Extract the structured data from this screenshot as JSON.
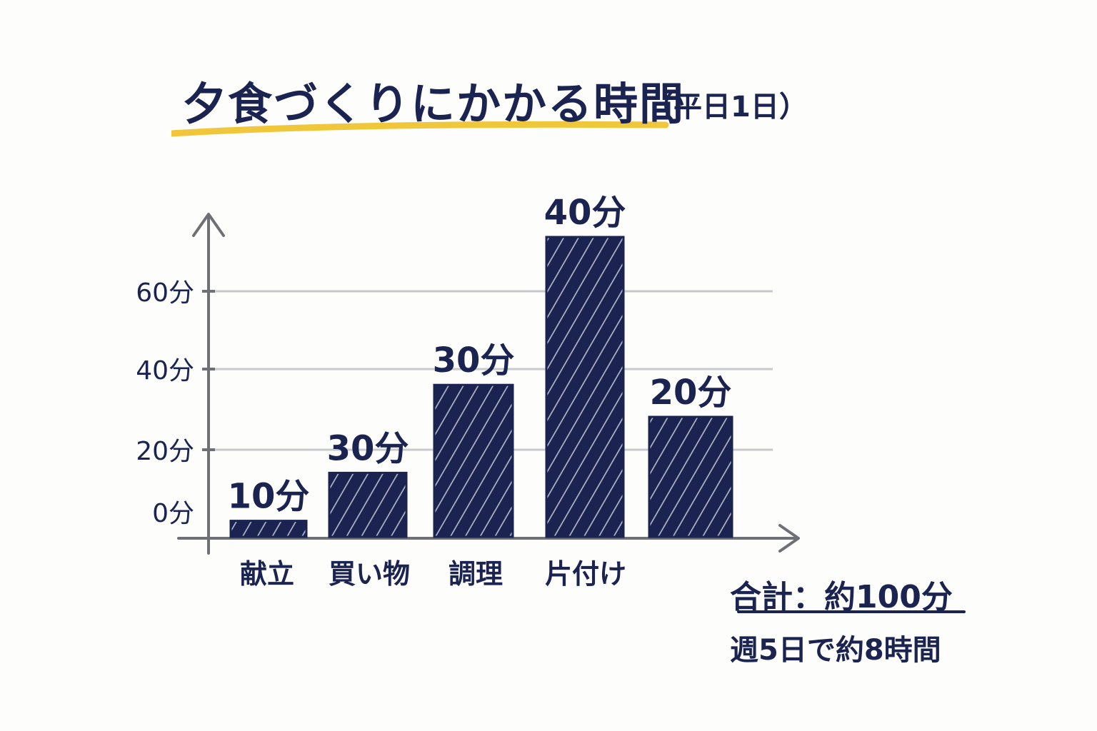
{
  "colors": {
    "bar": "#1b2450",
    "axis": "#6f7075",
    "grid": "#c8c9cc",
    "highlight": "#f0c73a",
    "text": "#1b2450"
  },
  "title": {
    "main": "夕食づくりにかかる時間",
    "sub": "（平日1日）"
  },
  "summary": {
    "total": "合計：約100分",
    "weekly": "週5日で約8時間"
  },
  "chart_data": {
    "type": "bar",
    "categories": [
      "献立",
      "買い物",
      "調理",
      "片付け",
      ""
    ],
    "values": [
      10,
      30,
      30,
      40,
      20
    ],
    "value_labels": [
      "10分",
      "30分",
      "30分",
      "40分",
      "20分"
    ],
    "y_ticks": [
      {
        "value": 0,
        "label": "0分"
      },
      {
        "value": 20,
        "label": "20分"
      },
      {
        "value": 40,
        "label": "40分"
      },
      {
        "value": 60,
        "label": "60分"
      }
    ],
    "bar_heights_as_drawn": [
      4,
      16,
      38,
      75,
      30
    ],
    "ylim": [
      0,
      80
    ],
    "grid": true,
    "title": "夕食づくりにかかる時間",
    "xlabel": "",
    "ylabel": ""
  }
}
